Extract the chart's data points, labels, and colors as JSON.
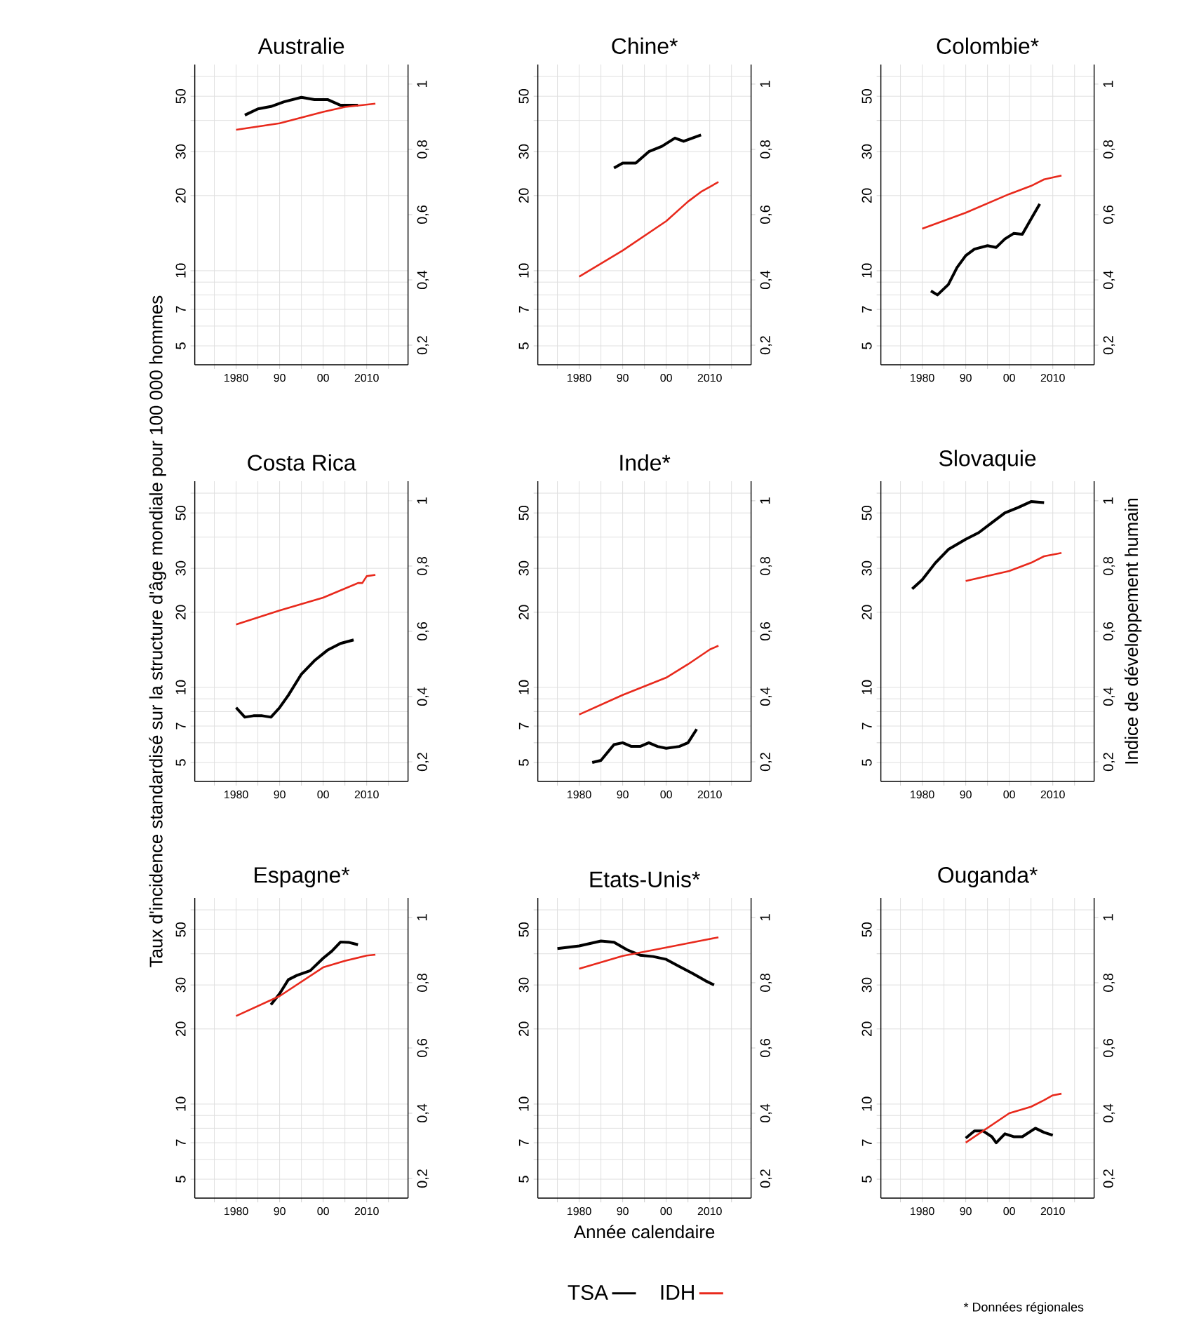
{
  "chart_data": [
    {
      "type": "line",
      "title": "Australie",
      "log": "y",
      "grid": true,
      "xlim": [
        1970.5,
        2019.5
      ],
      "ylim": [
        4.2,
        67
      ],
      "y2lim": [
        0.14,
        1.06
      ],
      "xticks": [
        {
          "value": 1975,
          "label": null
        },
        1980,
        {
          "value": 1985,
          "label": null
        },
        {
          "value": 1990,
          "label": "90"
        },
        {
          "value": 1995,
          "label": null
        },
        {
          "value": 2000,
          "label": "00"
        },
        {
          "value": 2005,
          "label": null
        },
        2010,
        {
          "value": 2015,
          "label": null
        }
      ],
      "yticks": [
        5,
        {
          "value": 6,
          "label": null
        },
        7,
        {
          "value": 8,
          "label": null
        },
        {
          "value": 9,
          "label": null
        },
        10,
        20,
        30,
        {
          "value": 40,
          "label": null
        },
        50,
        {
          "value": 60,
          "label": null
        }
      ],
      "y2ticks": [
        {
          "value": 0.2,
          "label": "0,2"
        },
        {
          "value": 0.4,
          "label": "0,4"
        },
        {
          "value": 0.6,
          "label": "0,6"
        },
        {
          "value": 0.8,
          "label": "0,8"
        },
        1
      ],
      "series": [
        {
          "color": "#000000",
          "x": [
            1982,
            1985,
            1988,
            1991,
            1995,
            1998,
            2001,
            2004,
            2008
          ],
          "values": [
            42,
            44.5,
            45.5,
            47.5,
            49.5,
            48.5,
            48.5,
            46,
            46
          ]
        },
        {
          "color": "#e8291c",
          "axis": "y2",
          "x": [
            1980,
            1990,
            2000,
            2005,
            2012
          ],
          "values": [
            0.86,
            0.88,
            0.915,
            0.93,
            0.94
          ]
        }
      ]
    },
    {
      "type": "line",
      "title": "Chine*",
      "log": "y",
      "grid": true,
      "xlim": [
        1970.5,
        2019.5
      ],
      "ylim": [
        4.2,
        67
      ],
      "y2lim": [
        0.14,
        1.06
      ],
      "xticks": [
        {
          "value": 1975,
          "label": null
        },
        1980,
        {
          "value": 1985,
          "label": null
        },
        {
          "value": 1990,
          "label": "90"
        },
        {
          "value": 1995,
          "label": null
        },
        {
          "value": 2000,
          "label": "00"
        },
        {
          "value": 2005,
          "label": null
        },
        2010,
        {
          "value": 2015,
          "label": null
        }
      ],
      "yticks": [
        5,
        {
          "value": 6,
          "label": null
        },
        7,
        {
          "value": 8,
          "label": null
        },
        {
          "value": 9,
          "label": null
        },
        10,
        20,
        30,
        {
          "value": 40,
          "label": null
        },
        50,
        {
          "value": 60,
          "label": null
        }
      ],
      "y2ticks": [
        {
          "value": 0.2,
          "label": "0,2"
        },
        {
          "value": 0.4,
          "label": "0,4"
        },
        {
          "value": 0.6,
          "label": "0,6"
        },
        {
          "value": 0.8,
          "label": "0,8"
        },
        1
      ],
      "series": [
        {
          "color": "#000000",
          "x": [
            1988,
            1990,
            1993,
            1996,
            1999,
            2002,
            2004,
            2006,
            2008
          ],
          "values": [
            25.8,
            27,
            27,
            30,
            31.5,
            34,
            33,
            34,
            35
          ]
        },
        {
          "color": "#e8291c",
          "axis": "y2",
          "x": [
            1980,
            1990,
            2000,
            2005,
            2008,
            2012
          ],
          "values": [
            0.41,
            0.49,
            0.58,
            0.64,
            0.67,
            0.7
          ]
        }
      ]
    },
    {
      "type": "line",
      "title": "Colombie*",
      "log": "y",
      "grid": true,
      "xlim": [
        1970.5,
        2019.5
      ],
      "ylim": [
        4.2,
        67
      ],
      "y2lim": [
        0.14,
        1.06
      ],
      "xticks": [
        {
          "value": 1975,
          "label": null
        },
        1980,
        {
          "value": 1985,
          "label": null
        },
        {
          "value": 1990,
          "label": "90"
        },
        {
          "value": 1995,
          "label": null
        },
        {
          "value": 2000,
          "label": "00"
        },
        {
          "value": 2005,
          "label": null
        },
        2010,
        {
          "value": 2015,
          "label": null
        }
      ],
      "yticks": [
        5,
        {
          "value": 6,
          "label": null
        },
        7,
        {
          "value": 8,
          "label": null
        },
        {
          "value": 9,
          "label": null
        },
        10,
        20,
        30,
        {
          "value": 40,
          "label": null
        },
        50,
        {
          "value": 60,
          "label": null
        }
      ],
      "y2ticks": [
        {
          "value": 0.2,
          "label": "0,2"
        },
        {
          "value": 0.4,
          "label": "0,4"
        },
        {
          "value": 0.6,
          "label": "0,6"
        },
        {
          "value": 0.8,
          "label": "0,8"
        },
        1
      ],
      "series": [
        {
          "color": "#000000",
          "x": [
            1982,
            1983.5,
            1986,
            1988,
            1990,
            1992,
            1995,
            1997,
            1999,
            2001,
            2003,
            2005,
            2007
          ],
          "values": [
            8.3,
            8,
            8.8,
            10.3,
            11.5,
            12.2,
            12.6,
            12.4,
            13.4,
            14.1,
            14,
            16.1,
            18.5
          ]
        },
        {
          "color": "#e8291c",
          "axis": "y2",
          "x": [
            1980,
            1990,
            2000,
            2005,
            2008,
            2012
          ],
          "values": [
            0.557,
            0.606,
            0.663,
            0.688,
            0.708,
            0.72
          ]
        }
      ]
    },
    {
      "type": "line",
      "title": "Costa Rica",
      "ylabel": "Taux d'incidence standardisé sur la structure d'âge mondiale pour 100 000 hommes",
      "log": "y",
      "grid": true,
      "xlim": [
        1970.5,
        2019.5
      ],
      "ylim": [
        4.2,
        67
      ],
      "y2lim": [
        0.14,
        1.06
      ],
      "xticks": [
        {
          "value": 1975,
          "label": null
        },
        1980,
        {
          "value": 1985,
          "label": null
        },
        {
          "value": 1990,
          "label": "90"
        },
        {
          "value": 1995,
          "label": null
        },
        {
          "value": 2000,
          "label": "00"
        },
        {
          "value": 2005,
          "label": null
        },
        2010,
        {
          "value": 2015,
          "label": null
        }
      ],
      "yticks": [
        5,
        {
          "value": 6,
          "label": null
        },
        7,
        {
          "value": 8,
          "label": null
        },
        {
          "value": 9,
          "label": null
        },
        10,
        20,
        30,
        {
          "value": 40,
          "label": null
        },
        50,
        {
          "value": 60,
          "label": null
        }
      ],
      "y2ticks": [
        {
          "value": 0.2,
          "label": "0,2"
        },
        {
          "value": 0.4,
          "label": "0,4"
        },
        {
          "value": 0.6,
          "label": "0,6"
        },
        {
          "value": 0.8,
          "label": "0,8"
        },
        1
      ],
      "series": [
        {
          "color": "#000000",
          "x": [
            1980,
            1982,
            1984,
            1986,
            1988,
            1990,
            1992,
            1995,
            1998,
            2001,
            2004,
            2007
          ],
          "values": [
            8.3,
            7.6,
            7.7,
            7.7,
            7.6,
            8.3,
            9.3,
            11.3,
            12.8,
            14.1,
            15,
            15.5
          ]
        },
        {
          "color": "#e8291c",
          "axis": "y2",
          "x": [
            1980,
            1990,
            2000,
            2008,
            2009,
            2010,
            2012
          ],
          "values": [
            0.621,
            0.664,
            0.703,
            0.748,
            0.748,
            0.769,
            0.773
          ]
        }
      ]
    },
    {
      "type": "line",
      "title": "Inde*",
      "log": "y",
      "grid": true,
      "xlim": [
        1970.5,
        2019.5
      ],
      "ylim": [
        4.2,
        67
      ],
      "y2lim": [
        0.14,
        1.06
      ],
      "xticks": [
        {
          "value": 1975,
          "label": null
        },
        1980,
        {
          "value": 1985,
          "label": null
        },
        {
          "value": 1990,
          "label": "90"
        },
        {
          "value": 1995,
          "label": null
        },
        {
          "value": 2000,
          "label": "00"
        },
        {
          "value": 2005,
          "label": null
        },
        2010,
        {
          "value": 2015,
          "label": null
        }
      ],
      "yticks": [
        5,
        {
          "value": 6,
          "label": null
        },
        7,
        {
          "value": 8,
          "label": null
        },
        {
          "value": 9,
          "label": null
        },
        10,
        20,
        30,
        {
          "value": 40,
          "label": null
        },
        50,
        {
          "value": 60,
          "label": null
        }
      ],
      "y2ticks": [
        {
          "value": 0.2,
          "label": "0,2"
        },
        {
          "value": 0.4,
          "label": "0,4"
        },
        {
          "value": 0.6,
          "label": "0,6"
        },
        {
          "value": 0.8,
          "label": "0,8"
        },
        1
      ],
      "series": [
        {
          "color": "#000000",
          "x": [
            1983,
            1985,
            1988,
            1990,
            1992,
            1994,
            1996,
            1998,
            2000,
            2003,
            2005,
            2007
          ],
          "values": [
            5,
            5.1,
            5.9,
            6,
            5.8,
            5.8,
            6,
            5.8,
            5.7,
            5.8,
            6,
            6.8
          ]
        },
        {
          "color": "#e8291c",
          "axis": "y2",
          "x": [
            1980,
            1990,
            2000,
            2005,
            2010,
            2012
          ],
          "values": [
            0.345,
            0.405,
            0.458,
            0.499,
            0.544,
            0.556
          ]
        }
      ]
    },
    {
      "type": "line",
      "title": "Slovaquie",
      "y2label": "Indice de développement humain",
      "log": "y",
      "grid": true,
      "xlim": [
        1970.5,
        2019.5
      ],
      "ylim": [
        4.2,
        67
      ],
      "y2lim": [
        0.14,
        1.06
      ],
      "xticks": [
        {
          "value": 1975,
          "label": null
        },
        1980,
        {
          "value": 1985,
          "label": null
        },
        {
          "value": 1990,
          "label": "90"
        },
        {
          "value": 1995,
          "label": null
        },
        {
          "value": 2000,
          "label": "00"
        },
        {
          "value": 2005,
          "label": null
        },
        2010,
        {
          "value": 2015,
          "label": null
        }
      ],
      "yticks": [
        5,
        {
          "value": 6,
          "label": null
        },
        7,
        {
          "value": 8,
          "label": null
        },
        {
          "value": 9,
          "label": null
        },
        10,
        20,
        30,
        {
          "value": 40,
          "label": null
        },
        50,
        {
          "value": 60,
          "label": null
        }
      ],
      "y2ticks": [
        {
          "value": 0.2,
          "label": "0,2"
        },
        {
          "value": 0.4,
          "label": "0,4"
        },
        {
          "value": 0.6,
          "label": "0,6"
        },
        {
          "value": 0.8,
          "label": "0,8"
        },
        1
      ],
      "series": [
        {
          "color": "#000000",
          "x": [
            1977.7,
            1980,
            1983,
            1986,
            1990,
            1993,
            1996,
            1999,
            2002,
            2005,
            2008
          ],
          "values": [
            24.8,
            27,
            31.5,
            35.7,
            39.2,
            41.7,
            45.7,
            50,
            52.5,
            55.5,
            55
          ]
        },
        {
          "color": "#e8291c",
          "axis": "y2",
          "x": [
            1990,
            2000,
            2005,
            2008,
            2012
          ],
          "values": [
            0.754,
            0.785,
            0.81,
            0.83,
            0.84
          ]
        }
      ]
    },
    {
      "type": "line",
      "title": "Espagne*",
      "log": "y",
      "grid": true,
      "xlim": [
        1970.5,
        2019.5
      ],
      "ylim": [
        4.2,
        67
      ],
      "y2lim": [
        0.14,
        1.06
      ],
      "xticks": [
        {
          "value": 1975,
          "label": null
        },
        1980,
        {
          "value": 1985,
          "label": null
        },
        {
          "value": 1990,
          "label": "90"
        },
        {
          "value": 1995,
          "label": null
        },
        {
          "value": 2000,
          "label": "00"
        },
        {
          "value": 2005,
          "label": null
        },
        2010,
        {
          "value": 2015,
          "label": null
        }
      ],
      "yticks": [
        5,
        {
          "value": 6,
          "label": null
        },
        7,
        {
          "value": 8,
          "label": null
        },
        {
          "value": 9,
          "label": null
        },
        10,
        20,
        30,
        {
          "value": 40,
          "label": null
        },
        50,
        {
          "value": 60,
          "label": null
        }
      ],
      "y2ticks": [
        {
          "value": 0.2,
          "label": "0,2"
        },
        {
          "value": 0.4,
          "label": "0,4"
        },
        {
          "value": 0.6,
          "label": "0,6"
        },
        {
          "value": 0.8,
          "label": "0,8"
        },
        1
      ],
      "series": [
        {
          "color": "#000000",
          "x": [
            1988,
            1990,
            1992,
            1994,
            1997,
            2000,
            2002,
            2004,
            2006,
            2008
          ],
          "values": [
            25,
            27.7,
            31.5,
            32.8,
            34.2,
            38.4,
            41,
            44.6,
            44.4,
            43.5
          ]
        },
        {
          "color": "#e8291c",
          "axis": "y2",
          "x": [
            1980,
            1990,
            2000,
            2005,
            2010,
            2012
          ],
          "values": [
            0.698,
            0.759,
            0.847,
            0.867,
            0.883,
            0.886
          ]
        }
      ]
    },
    {
      "type": "line",
      "title": "Etats-Unis*",
      "xlabel": "Année calendaire",
      "legend": "bottom",
      "log": "y",
      "grid": true,
      "xlim": [
        1970.5,
        2019.5
      ],
      "ylim": [
        4.2,
        67
      ],
      "y2lim": [
        0.14,
        1.06
      ],
      "xticks": [
        {
          "value": 1975,
          "label": null
        },
        1980,
        {
          "value": 1985,
          "label": null
        },
        {
          "value": 1990,
          "label": "90"
        },
        {
          "value": 1995,
          "label": null
        },
        {
          "value": 2000,
          "label": "00"
        },
        {
          "value": 2005,
          "label": null
        },
        2010,
        {
          "value": 2015,
          "label": null
        }
      ],
      "yticks": [
        5,
        {
          "value": 6,
          "label": null
        },
        7,
        {
          "value": 8,
          "label": null
        },
        {
          "value": 9,
          "label": null
        },
        10,
        20,
        30,
        {
          "value": 40,
          "label": null
        },
        50,
        {
          "value": 60,
          "label": null
        }
      ],
      "y2ticks": [
        {
          "value": 0.2,
          "label": "0,2"
        },
        {
          "value": 0.4,
          "label": "0,4"
        },
        {
          "value": 0.6,
          "label": "0,6"
        },
        {
          "value": 0.8,
          "label": "0,8"
        },
        1
      ],
      "series": [
        {
          "name": "TSA",
          "color": "#000000",
          "x": [
            1975,
            1980,
            1985,
            1988,
            1991,
            1994,
            1997,
            2000,
            2003,
            2006,
            2009,
            2011
          ],
          "values": [
            42,
            43,
            45,
            44.5,
            41.5,
            39.5,
            39,
            38,
            35.6,
            33.4,
            31.2,
            30
          ]
        },
        {
          "name": "IDH",
          "color": "#e8291c",
          "axis": "y2",
          "x": [
            1980,
            1990,
            2000,
            2008,
            2012
          ],
          "values": [
            0.843,
            0.882,
            0.908,
            0.929,
            0.939
          ]
        }
      ]
    },
    {
      "type": "line",
      "title": "Ouganda*",
      "annotations": [
        "* Données régionales"
      ],
      "log": "y",
      "grid": true,
      "xlim": [
        1970.5,
        2019.5
      ],
      "ylim": [
        4.2,
        67
      ],
      "y2lim": [
        0.14,
        1.06
      ],
      "xticks": [
        {
          "value": 1975,
          "label": null
        },
        1980,
        {
          "value": 1985,
          "label": null
        },
        {
          "value": 1990,
          "label": "90"
        },
        {
          "value": 1995,
          "label": null
        },
        {
          "value": 2000,
          "label": "00"
        },
        {
          "value": 2005,
          "label": null
        },
        2010,
        {
          "value": 2015,
          "label": null
        }
      ],
      "yticks": [
        5,
        {
          "value": 6,
          "label": null
        },
        7,
        {
          "value": 8,
          "label": null
        },
        {
          "value": 9,
          "label": null
        },
        10,
        20,
        30,
        {
          "value": 40,
          "label": null
        },
        50,
        {
          "value": 60,
          "label": null
        }
      ],
      "y2ticks": [
        {
          "value": 0.2,
          "label": "0,2"
        },
        {
          "value": 0.4,
          "label": "0,4"
        },
        {
          "value": 0.6,
          "label": "0,6"
        },
        {
          "value": 0.8,
          "label": "0,8"
        },
        1
      ],
      "series": [
        {
          "color": "#000000",
          "x": [
            1990,
            1992,
            1994,
            1996,
            1997,
            1999,
            2001,
            2003,
            2006,
            2008,
            2010
          ],
          "values": [
            7.3,
            7.8,
            7.8,
            7.4,
            7,
            7.6,
            7.4,
            7.4,
            8,
            7.7,
            7.5
          ]
        },
        {
          "color": "#e8291c",
          "axis": "y2",
          "x": [
            1990,
            2000,
            2005,
            2008,
            2010,
            2012
          ],
          "values": [
            0.31,
            0.4,
            0.42,
            0.44,
            0.455,
            0.46
          ]
        }
      ]
    }
  ]
}
